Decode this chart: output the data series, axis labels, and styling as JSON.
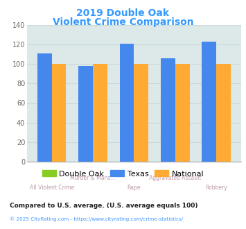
{
  "title_line1": "2019 Double Oak",
  "title_line2": "Violent Crime Comparison",
  "title_color": "#3399ff",
  "categories": [
    "All Violent Crime",
    "Murder & Mans...",
    "Rape",
    "Aggravated Assault",
    "Robbery"
  ],
  "cat_top": [
    "",
    "Murder & Mans...",
    "",
    "Aggravated Assault",
    ""
  ],
  "cat_bottom": [
    "All Violent Crime",
    "",
    "Rape",
    "",
    "Robbery"
  ],
  "double_oak": [
    0,
    0,
    0,
    0,
    0
  ],
  "texas": [
    111,
    98,
    121,
    106,
    123
  ],
  "national": [
    100,
    100,
    100,
    100,
    100
  ],
  "color_double_oak": "#88cc22",
  "color_texas": "#4488ee",
  "color_national": "#ffaa33",
  "ylim": [
    0,
    140
  ],
  "yticks": [
    0,
    20,
    40,
    60,
    80,
    100,
    120,
    140
  ],
  "chart_bg": "#dde8e8",
  "legend_labels": [
    "Double Oak",
    "Texas",
    "National"
  ],
  "footnote1": "Compared to U.S. average. (U.S. average equals 100)",
  "footnote2": "© 2025 CityRating.com - https://www.cityrating.com/crime-statistics/",
  "footnote1_color": "#222222",
  "footnote2_color": "#4499ff",
  "xlabel_color": "#bb99aa",
  "grid_color": "#c8d8d8"
}
